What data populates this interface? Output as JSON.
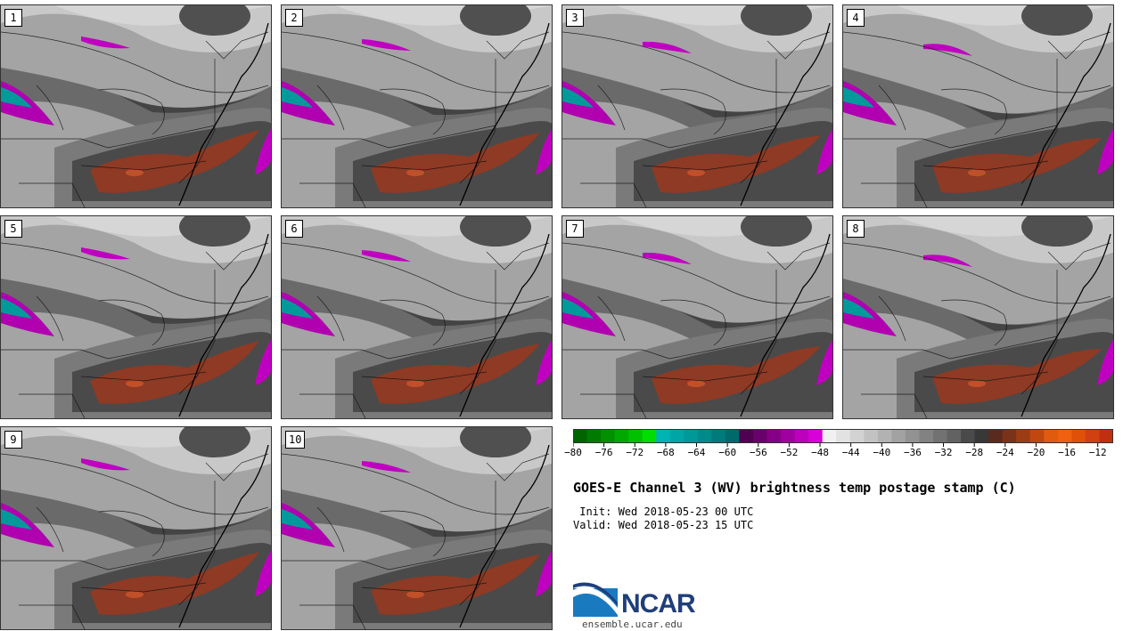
{
  "panels": [
    {
      "label": "1"
    },
    {
      "label": "2"
    },
    {
      "label": "3"
    },
    {
      "label": "4"
    },
    {
      "label": "5"
    },
    {
      "label": "6"
    },
    {
      "label": "7"
    },
    {
      "label": "8"
    },
    {
      "label": "9"
    },
    {
      "label": "10"
    }
  ],
  "colorbar": {
    "ticks": [
      "-80",
      "-76",
      "-72",
      "-68",
      "-64",
      "-60",
      "-56",
      "-52",
      "-48",
      "-44",
      "-40",
      "-36",
      "-32",
      "-28",
      "-24",
      "-20",
      "-16",
      "-12"
    ],
    "colors": [
      "#006400",
      "#007a00",
      "#009000",
      "#00a800",
      "#00c000",
      "#00dd00",
      "#00b4b4",
      "#00a6a6",
      "#009898",
      "#008a8a",
      "#007a7a",
      "#006a6a",
      "#500050",
      "#6a006a",
      "#840084",
      "#a000a0",
      "#bc00bc",
      "#d800d8",
      "#f0f0f0",
      "#e2e2e2",
      "#d2d2d2",
      "#c2c2c2",
      "#b2b2b2",
      "#a2a2a2",
      "#929292",
      "#828282",
      "#727272",
      "#626262",
      "#4a4a4a",
      "#383838",
      "#5a2a1e",
      "#7a3218",
      "#9c3c14",
      "#c04810",
      "#e05a10",
      "#f06010",
      "#e05008",
      "#d04010",
      "#c03010"
    ]
  },
  "title": "GOES-E Channel 3 (WV) brightness temp postage stamp (C)",
  "init_line": " Init: Wed 2018-05-23 00 UTC",
  "valid_line": "Valid: Wed 2018-05-23 15 UTC",
  "logo_text": "NCAR",
  "url": "ensemble.ucar.edu"
}
